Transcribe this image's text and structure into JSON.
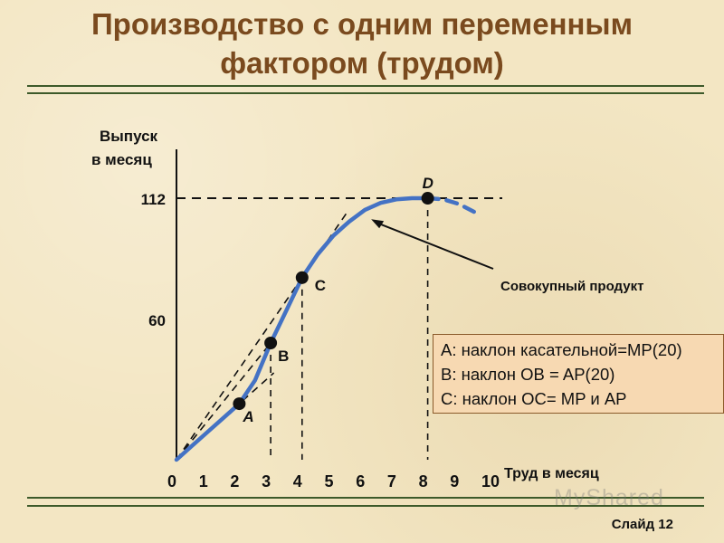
{
  "slide": {
    "title_line1": "Производство с одним  переменным",
    "title_line2": "фактором  (трудом)",
    "slide_label": "Слайд 12",
    "watermark": "MyShared"
  },
  "colors": {
    "title": "#7a4a1e",
    "curve": "#4472c4",
    "rule": "#3d5a2a",
    "legend_bg": "#f7d9b2"
  },
  "legend": {
    "lines": [
      "A: наклон касательной=MP(20)",
      "B: наклон OB = AP(20)",
      "C: наклон OC= MP и AP"
    ]
  },
  "chart_data": {
    "type": "line",
    "ylabel_line1": "Выпуск",
    "ylabel_line2": "в месяц",
    "xlabel": "Труд в месяц",
    "xlim": [
      0,
      10
    ],
    "x_ticks": [
      "0",
      "1",
      "2",
      "3",
      "4",
      "5",
      "6",
      "7",
      "8",
      "9",
      "10"
    ],
    "y_ticks": [
      {
        "value": 60,
        "label": "60"
      },
      {
        "value": 112,
        "label": "112"
      }
    ],
    "series": [
      {
        "name": "Совокупный продукт",
        "style": "solid",
        "x": [
          0,
          0.5,
          1,
          1.5,
          2,
          2.5,
          3,
          3.5,
          4,
          4.5,
          5,
          5.5,
          6,
          6.5,
          7,
          7.5,
          8
        ],
        "y": [
          0,
          6,
          12,
          18,
          24,
          34,
          50,
          64,
          78,
          88,
          96,
          102,
          107,
          110,
          111.5,
          112,
          112
        ]
      },
      {
        "name": "",
        "style": "dashed",
        "x": [
          8,
          8.5,
          9,
          9.5
        ],
        "y": [
          112,
          111.5,
          109.5,
          106
        ]
      }
    ],
    "points": [
      {
        "label": "A",
        "x": 2,
        "y": 24
      },
      {
        "label": "B",
        "x": 3,
        "y": 50
      },
      {
        "label": "C",
        "x": 4,
        "y": 78
      },
      {
        "label": "D",
        "x": 8,
        "y": 112
      }
    ],
    "annotation": {
      "text": "Совокупный продукт",
      "points_to_x": 6.2
    }
  }
}
